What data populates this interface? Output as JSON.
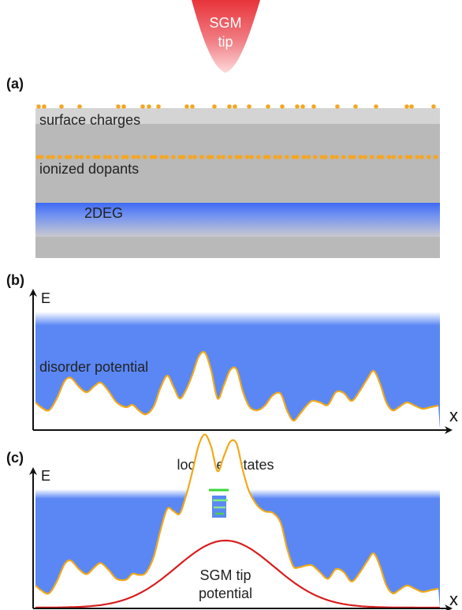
{
  "tip": {
    "label_line1": "SGM",
    "label_line2": "tip"
  },
  "panel_a": {
    "label": "(a)",
    "surface_charges": "surface charges",
    "ionized_dopants": "ionized dopants",
    "twodeg": "2DEG"
  },
  "panel_b": {
    "label": "(b)",
    "y_axis": "E",
    "x_axis": "x",
    "disorder_potential": "disorder potential"
  },
  "panel_c": {
    "label": "(c)",
    "y_axis": "E",
    "x_axis": "x",
    "localized_states": "localized states",
    "tip_potential_line1": "SGM tip",
    "tip_potential_line2": "potential"
  },
  "colors": {
    "dots": "#f5a623",
    "electron_sea": "#5b87f5",
    "tip": "#e8343a",
    "tip_potential": "#d81e1e",
    "localized_state": "#38d838",
    "curve": "#f0a91a"
  }
}
